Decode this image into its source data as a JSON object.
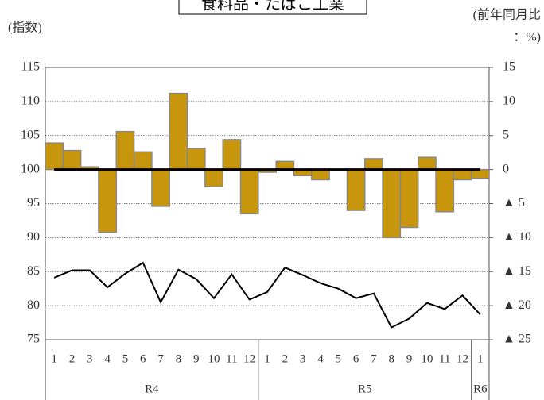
{
  "chart_data": {
    "type": "bar-line",
    "title": "食料品・たばこ工業",
    "y_label": "(指数)",
    "y2_label": [
      "(前年同月比",
      "：%)"
    ],
    "categories": [
      "1",
      "2",
      "3",
      "4",
      "5",
      "6",
      "7",
      "8",
      "9",
      "10",
      "11",
      "12",
      "1",
      "2",
      "3",
      "4",
      "5",
      "6",
      "7",
      "8",
      "9",
      "10",
      "11",
      "12",
      "1"
    ],
    "groups": [
      "R4",
      "R5",
      "R6"
    ],
    "series": [
      {
        "name": "前年同月比",
        "type": "bar",
        "axis": "y2",
        "color": "#c8960c",
        "values": [
          3.9,
          2.8,
          0.4,
          -9.2,
          5.6,
          2.6,
          -5.4,
          11.2,
          3.1,
          -2.5,
          4.4,
          -6.5,
          -0.4,
          1.2,
          -0.9,
          -1.5,
          -0.1,
          -6.0,
          1.6,
          -10.0,
          -8.5,
          1.8,
          -6.2,
          -1.5,
          -1.3
        ]
      },
      {
        "name": "指数",
        "type": "line",
        "axis": "y",
        "color": "#000000",
        "values": [
          84.1,
          85.2,
          85.2,
          82.7,
          84.7,
          86.3,
          80.5,
          85.3,
          83.9,
          81.1,
          84.6,
          80.9,
          82.0,
          85.6,
          84.5,
          83.3,
          82.5,
          81.1,
          81.8,
          76.8,
          78.1,
          80.4,
          79.5,
          81.5,
          78.7
        ]
      }
    ],
    "ylim": [
      75,
      115
    ],
    "yticks": [
      75,
      80,
      85,
      90,
      95,
      100,
      105,
      110,
      115
    ],
    "y2lim": [
      -25,
      15
    ],
    "y2ticks": [
      {
        "value": -25,
        "label": "▲ 25"
      },
      {
        "value": -20,
        "label": "▲ 20"
      },
      {
        "value": -15,
        "label": "▲ 15"
      },
      {
        "value": -10,
        "label": "▲ 10"
      },
      {
        "value": -5,
        "label": "▲ 5"
      },
      0,
      5,
      10,
      15
    ],
    "grid": true
  }
}
